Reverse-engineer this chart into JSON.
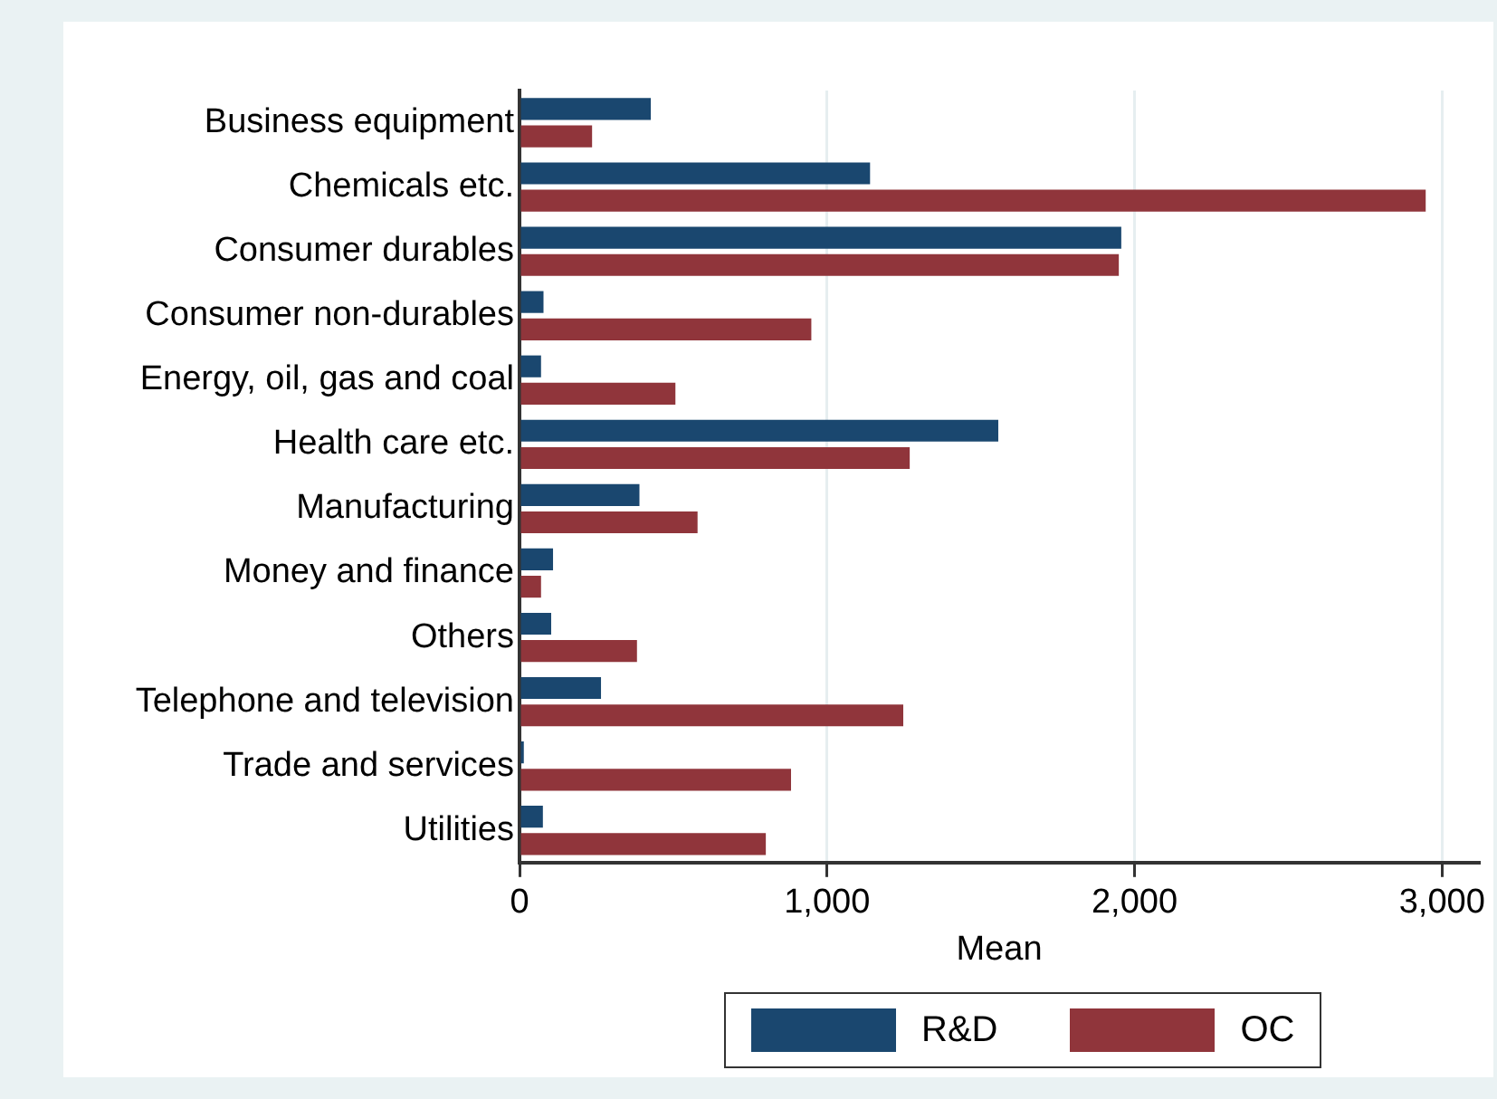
{
  "chart_data": {
    "type": "bar",
    "orientation": "horizontal",
    "xlabel": "Mean",
    "categories": [
      "Business equipment",
      "Chemicals etc.",
      "Consumer durables",
      "Consumer non-durables",
      "Energy, oil, gas and coal",
      "Health care etc.",
      "Manufacturing",
      "Money and finance",
      "Others",
      "Telephone and television",
      "Trade and services",
      "Utilities"
    ],
    "series": [
      {
        "name": "R&D",
        "color": "#1a476f",
        "values": [
          427,
          1140,
          1957,
          78,
          70,
          1557,
          390,
          109,
          103,
          265,
          14,
          76
        ]
      },
      {
        "name": "OC",
        "color": "#90353b",
        "values": [
          236,
          2947,
          1949,
          949,
          507,
          1269,
          579,
          70,
          382,
          1248,
          883,
          801
        ]
      }
    ],
    "xlim": [
      0,
      3120
    ],
    "xticks": [
      0,
      {
        "value": 1000,
        "label": "1,000"
      },
      {
        "value": 2000,
        "label": "2,000"
      },
      {
        "value": 3000,
        "label": "3,000"
      }
    ],
    "grid": "x",
    "legend": "bottom"
  }
}
